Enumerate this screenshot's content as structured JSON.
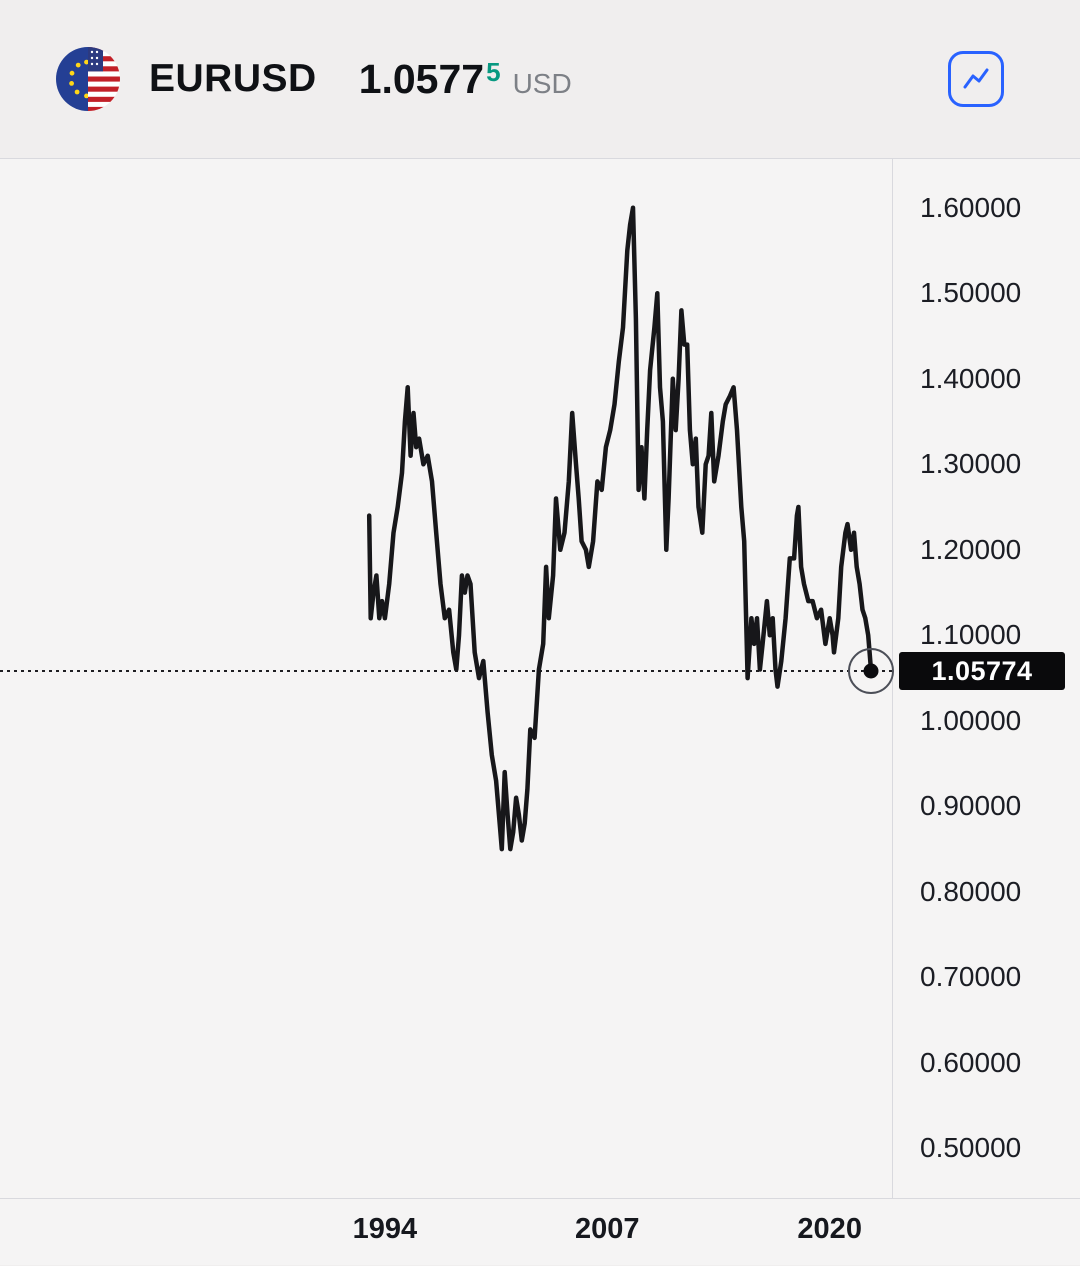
{
  "header": {
    "symbol": "EURUSD",
    "price_main": "1.0577",
    "price_sup": "5",
    "price_currency": "USD",
    "price_sup_color": "#089981",
    "accent_color": "#2962ff",
    "flag_icon": "eu-us-flag-icon",
    "chart_button_icon": "line-chart-icon"
  },
  "chart": {
    "last_price_label": "1.05774",
    "y_ticks": [
      "1.60000",
      "1.50000",
      "1.40000",
      "1.30000",
      "1.20000",
      "1.10000",
      "1.00000",
      "0.90000",
      "0.80000",
      "0.70000",
      "0.60000",
      "0.50000"
    ],
    "x_ticks": [
      "1994",
      "2007",
      "2020"
    ],
    "line_color": "#17171a",
    "tag_bg": "#0a0a0c",
    "tag_text_color": "#ffffff",
    "dotted_line_color": "#1e1e22"
  },
  "chart_data": {
    "type": "line",
    "title": "EURUSD exchange rate history",
    "xlabel": "",
    "ylabel": "",
    "grid": false,
    "legend": false,
    "xlim": [
      1971.5,
      2023.7
    ],
    "ylim": [
      0.442,
      1.657
    ],
    "x_tick_values": [
      1994,
      2007,
      2020
    ],
    "y_tick_values": [
      1.6,
      1.5,
      1.4,
      1.3,
      1.2,
      1.1,
      1.0,
      0.9,
      0.8,
      0.7,
      0.6,
      0.5
    ],
    "last_point": {
      "x": 2022.42,
      "y": 1.05774
    },
    "x": [
      1993.08,
      1993.17,
      1993.33,
      1993.5,
      1993.67,
      1993.83,
      1994.0,
      1994.25,
      1994.5,
      1994.75,
      1995.0,
      1995.17,
      1995.33,
      1995.5,
      1995.67,
      1995.83,
      1996.0,
      1996.25,
      1996.5,
      1996.75,
      1997.0,
      1997.25,
      1997.5,
      1997.75,
      1998.0,
      1998.17,
      1998.33,
      1998.5,
      1998.67,
      1998.83,
      1999.0,
      1999.25,
      1999.5,
      1999.75,
      2000.0,
      2000.25,
      2000.5,
      2000.75,
      2000.83,
      2001.0,
      2001.17,
      2001.33,
      2001.5,
      2001.67,
      2001.83,
      2002.0,
      2002.17,
      2002.33,
      2002.5,
      2002.75,
      2003.0,
      2003.25,
      2003.42,
      2003.58,
      2003.83,
      2004.0,
      2004.25,
      2004.5,
      2004.75,
      2004.95,
      2005.17,
      2005.33,
      2005.5,
      2005.75,
      2005.92,
      2006.17,
      2006.42,
      2006.67,
      2006.92,
      2007.17,
      2007.42,
      2007.67,
      2007.92,
      2008.17,
      2008.33,
      2008.5,
      2008.67,
      2008.83,
      2009.0,
      2009.17,
      2009.33,
      2009.5,
      2009.75,
      2009.92,
      2010.08,
      2010.25,
      2010.45,
      2010.58,
      2010.83,
      2011.0,
      2011.17,
      2011.33,
      2011.5,
      2011.67,
      2011.83,
      2012.0,
      2012.17,
      2012.33,
      2012.55,
      2012.75,
      2012.92,
      2013.08,
      2013.25,
      2013.5,
      2013.75,
      2013.92,
      2014.17,
      2014.38,
      2014.58,
      2014.83,
      2015.0,
      2015.2,
      2015.42,
      2015.58,
      2015.75,
      2015.92,
      2016.08,
      2016.33,
      2016.5,
      2016.67,
      2016.83,
      2016.95,
      2017.17,
      2017.42,
      2017.67,
      2017.92,
      2018.08,
      2018.17,
      2018.33,
      2018.5,
      2018.75,
      2019.0,
      2019.25,
      2019.5,
      2019.75,
      2020.0,
      2020.17,
      2020.25,
      2020.5,
      2020.67,
      2020.92,
      2021.04,
      2021.25,
      2021.42,
      2021.58,
      2021.75,
      2021.92,
      2022.08,
      2022.25,
      2022.33,
      2022.42
    ],
    "y": [
      1.24,
      1.12,
      1.15,
      1.17,
      1.12,
      1.14,
      1.12,
      1.16,
      1.22,
      1.25,
      1.29,
      1.35,
      1.39,
      1.31,
      1.36,
      1.32,
      1.33,
      1.3,
      1.31,
      1.28,
      1.22,
      1.16,
      1.12,
      1.13,
      1.08,
      1.06,
      1.1,
      1.17,
      1.15,
      1.17,
      1.16,
      1.08,
      1.05,
      1.07,
      1.01,
      0.96,
      0.93,
      0.87,
      0.85,
      0.94,
      0.89,
      0.85,
      0.87,
      0.91,
      0.89,
      0.86,
      0.88,
      0.92,
      0.99,
      0.98,
      1.06,
      1.09,
      1.18,
      1.12,
      1.17,
      1.26,
      1.2,
      1.22,
      1.28,
      1.36,
      1.3,
      1.26,
      1.21,
      1.2,
      1.18,
      1.21,
      1.28,
      1.27,
      1.32,
      1.34,
      1.37,
      1.42,
      1.46,
      1.55,
      1.58,
      1.6,
      1.47,
      1.27,
      1.32,
      1.26,
      1.34,
      1.41,
      1.46,
      1.5,
      1.39,
      1.35,
      1.2,
      1.26,
      1.4,
      1.34,
      1.4,
      1.48,
      1.44,
      1.44,
      1.34,
      1.3,
      1.33,
      1.25,
      1.22,
      1.3,
      1.31,
      1.36,
      1.28,
      1.31,
      1.35,
      1.37,
      1.38,
      1.39,
      1.34,
      1.25,
      1.21,
      1.05,
      1.12,
      1.09,
      1.12,
      1.06,
      1.09,
      1.14,
      1.1,
      1.12,
      1.06,
      1.04,
      1.07,
      1.12,
      1.19,
      1.19,
      1.24,
      1.25,
      1.18,
      1.16,
      1.14,
      1.14,
      1.12,
      1.13,
      1.09,
      1.12,
      1.1,
      1.08,
      1.12,
      1.18,
      1.22,
      1.23,
      1.2,
      1.22,
      1.18,
      1.16,
      1.13,
      1.12,
      1.1,
      1.08,
      1.0577
    ]
  }
}
